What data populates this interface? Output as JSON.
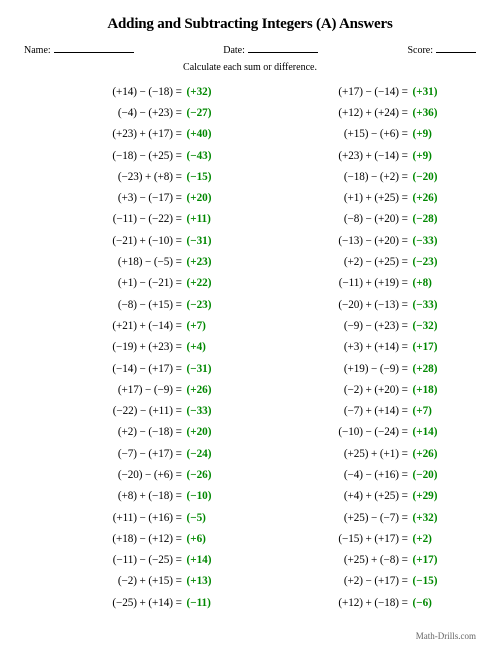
{
  "title": "Adding and Subtracting Integers (A) Answers",
  "header": {
    "name_label": "Name:",
    "date_label": "Date:",
    "score_label": "Score:"
  },
  "instruction": "Calculate each sum or difference.",
  "footer": "Math-Drills.com",
  "ops": {
    "plus": " + ",
    "minus": " − ",
    "eq": " = "
  },
  "left": [
    {
      "a": "(+14)",
      "op": "minus",
      "b": "(−18)",
      "r": "(+32)"
    },
    {
      "a": "(−4)",
      "op": "minus",
      "b": "(+23)",
      "r": "(−27)"
    },
    {
      "a": "(+23)",
      "op": "plus",
      "b": "(+17)",
      "r": "(+40)"
    },
    {
      "a": "(−18)",
      "op": "minus",
      "b": "(+25)",
      "r": "(−43)"
    },
    {
      "a": "(−23)",
      "op": "plus",
      "b": "(+8)",
      "r": "(−15)"
    },
    {
      "a": "(+3)",
      "op": "minus",
      "b": "(−17)",
      "r": "(+20)"
    },
    {
      "a": "(−11)",
      "op": "minus",
      "b": "(−22)",
      "r": "(+11)"
    },
    {
      "a": "(−21)",
      "op": "plus",
      "b": "(−10)",
      "r": "(−31)"
    },
    {
      "a": "(+18)",
      "op": "minus",
      "b": "(−5)",
      "r": "(+23)"
    },
    {
      "a": "(+1)",
      "op": "minus",
      "b": "(−21)",
      "r": "(+22)"
    },
    {
      "a": "(−8)",
      "op": "minus",
      "b": "(+15)",
      "r": "(−23)"
    },
    {
      "a": "(+21)",
      "op": "plus",
      "b": "(−14)",
      "r": "(+7)"
    },
    {
      "a": "(−19)",
      "op": "plus",
      "b": "(+23)",
      "r": "(+4)"
    },
    {
      "a": "(−14)",
      "op": "minus",
      "b": "(+17)",
      "r": "(−31)"
    },
    {
      "a": "(+17)",
      "op": "minus",
      "b": "(−9)",
      "r": "(+26)"
    },
    {
      "a": "(−22)",
      "op": "minus",
      "b": "(+11)",
      "r": "(−33)"
    },
    {
      "a": "(+2)",
      "op": "minus",
      "b": "(−18)",
      "r": "(+20)"
    },
    {
      "a": "(−7)",
      "op": "minus",
      "b": "(+17)",
      "r": "(−24)"
    },
    {
      "a": "(−20)",
      "op": "minus",
      "b": "(+6)",
      "r": "(−26)"
    },
    {
      "a": "(+8)",
      "op": "plus",
      "b": "(−18)",
      "r": "(−10)"
    },
    {
      "a": "(+11)",
      "op": "minus",
      "b": "(+16)",
      "r": "(−5)"
    },
    {
      "a": "(+18)",
      "op": "minus",
      "b": "(+12)",
      "r": "(+6)"
    },
    {
      "a": "(−11)",
      "op": "minus",
      "b": "(−25)",
      "r": "(+14)"
    },
    {
      "a": "(−2)",
      "op": "plus",
      "b": "(+15)",
      "r": "(+13)"
    },
    {
      "a": "(−25)",
      "op": "plus",
      "b": "(+14)",
      "r": "(−11)"
    }
  ],
  "right": [
    {
      "a": "(+17)",
      "op": "minus",
      "b": "(−14)",
      "r": "(+31)"
    },
    {
      "a": "(+12)",
      "op": "plus",
      "b": "(+24)",
      "r": "(+36)"
    },
    {
      "a": "(+15)",
      "op": "minus",
      "b": "(+6)",
      "r": "(+9)"
    },
    {
      "a": "(+23)",
      "op": "plus",
      "b": "(−14)",
      "r": "(+9)"
    },
    {
      "a": "(−18)",
      "op": "minus",
      "b": "(+2)",
      "r": "(−20)"
    },
    {
      "a": "(+1)",
      "op": "plus",
      "b": "(+25)",
      "r": "(+26)"
    },
    {
      "a": "(−8)",
      "op": "minus",
      "b": "(+20)",
      "r": "(−28)"
    },
    {
      "a": "(−13)",
      "op": "minus",
      "b": "(+20)",
      "r": "(−33)"
    },
    {
      "a": "(+2)",
      "op": "minus",
      "b": "(+25)",
      "r": "(−23)"
    },
    {
      "a": "(−11)",
      "op": "plus",
      "b": "(+19)",
      "r": "(+8)"
    },
    {
      "a": "(−20)",
      "op": "plus",
      "b": "(−13)",
      "r": "(−33)"
    },
    {
      "a": "(−9)",
      "op": "minus",
      "b": "(+23)",
      "r": "(−32)"
    },
    {
      "a": "(+3)",
      "op": "plus",
      "b": "(+14)",
      "r": "(+17)"
    },
    {
      "a": "(+19)",
      "op": "minus",
      "b": "(−9)",
      "r": "(+28)"
    },
    {
      "a": "(−2)",
      "op": "plus",
      "b": "(+20)",
      "r": "(+18)"
    },
    {
      "a": "(−7)",
      "op": "plus",
      "b": "(+14)",
      "r": "(+7)"
    },
    {
      "a": "(−10)",
      "op": "minus",
      "b": "(−24)",
      "r": "(+14)"
    },
    {
      "a": "(+25)",
      "op": "plus",
      "b": "(+1)",
      "r": "(+26)"
    },
    {
      "a": "(−4)",
      "op": "minus",
      "b": "(+16)",
      "r": "(−20)"
    },
    {
      "a": "(+4)",
      "op": "plus",
      "b": "(+25)",
      "r": "(+29)"
    },
    {
      "a": "(+25)",
      "op": "minus",
      "b": "(−7)",
      "r": "(+32)"
    },
    {
      "a": "(−15)",
      "op": "plus",
      "b": "(+17)",
      "r": "(+2)"
    },
    {
      "a": "(+25)",
      "op": "plus",
      "b": "(−8)",
      "r": "(+17)"
    },
    {
      "a": "(+2)",
      "op": "minus",
      "b": "(+17)",
      "r": "(−15)"
    },
    {
      "a": "(+12)",
      "op": "plus",
      "b": "(−18)",
      "r": "(−6)"
    }
  ]
}
